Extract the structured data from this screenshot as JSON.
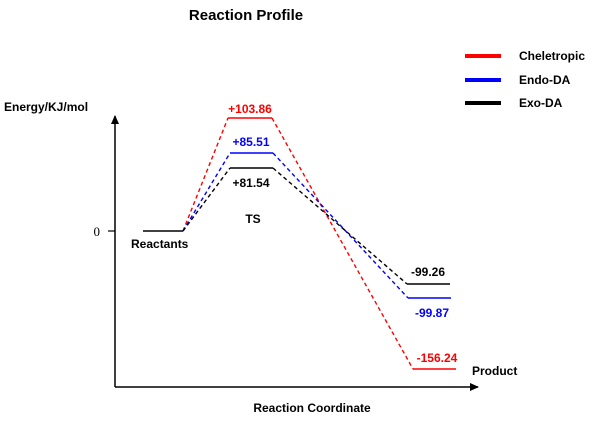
{
  "chart_data": {
    "type": "energy-profile",
    "title": "Reaction Profile",
    "ylabel": "Energy/KJ/mol",
    "xlabel": "Reaction Coordinate",
    "zero_tick": "0",
    "stage_labels": {
      "reactants": "Reactants",
      "ts": "TS",
      "product": "Product"
    },
    "legend_placement": "top-right",
    "series": [
      {
        "name": "Cheletropic",
        "color": "#ff0000",
        "reactants": 0,
        "ts": 103.86,
        "product": -156.24,
        "ts_label": "+103.86",
        "product_label": "-156.24"
      },
      {
        "name": "Endo-DA",
        "color": "#0000ff",
        "reactants": 0,
        "ts": 85.51,
        "product": -99.87,
        "ts_label": "+85.51",
        "product_label": "-99.87"
      },
      {
        "name": "Exo-DA",
        "color": "#000000",
        "reactants": 0,
        "ts": 81.54,
        "product": -99.26,
        "ts_label": "+81.54",
        "product_label": "-99.26"
      }
    ]
  }
}
